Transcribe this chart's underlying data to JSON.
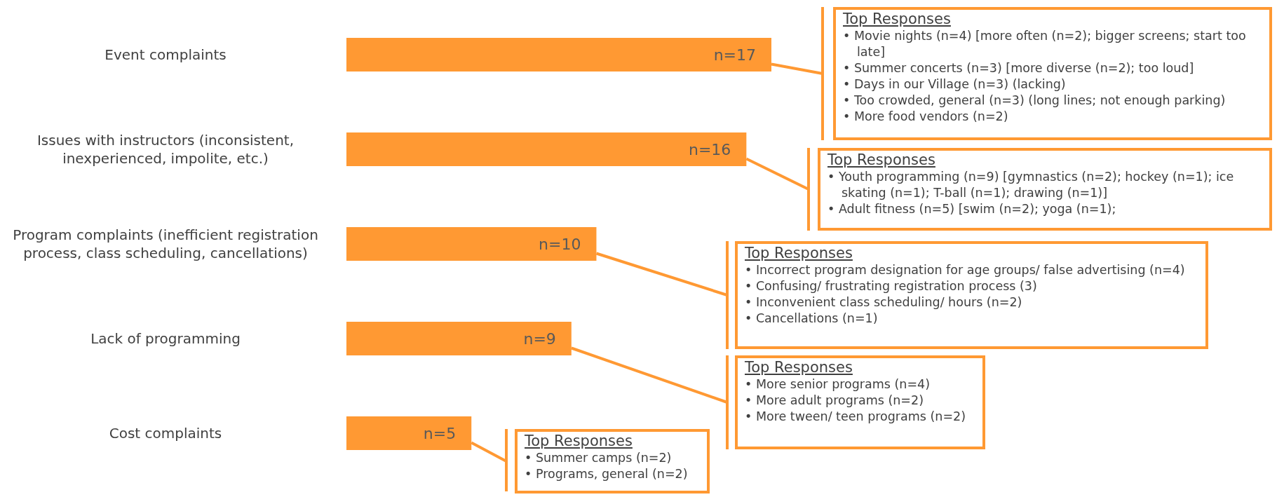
{
  "chart_data": {
    "type": "bar",
    "orientation": "horizontal",
    "categories": [
      "Event complaints",
      "Issues with instructors (inconsistent, inexperienced, impolite, etc.)",
      "Program complaints (inefficient registration process, class scheduling, cancellations)",
      "Lack of programming",
      "Cost complaints"
    ],
    "values": [
      17,
      16,
      10,
      9,
      5
    ],
    "color": "#ff9933",
    "value_labels": [
      "n=17",
      "n=16",
      "n=10",
      "n=9",
      "n=5"
    ],
    "annotations": [
      "Top Responses\n• Movie nights (n=4) [more often (n=2); bigger screens; start too late]\n• Summer concerts (n=3) [more diverse (n=2); too loud]\n• Days in our Village (n=3) (lacking)\n• Too crowded, general (n=3) (long lines; not enough parking)\n• More food vendors (n=2)",
      "Top Responses\n• Youth programming (n=9) [gymnastics (n=2); hockey (n=1); ice skating (n=1); T-ball (n=1); drawing (n=1)]\n• Adult fitness (n=5) [swim (n=2); yoga (n=1);",
      "Top Responses\n• Incorrect program designation for age groups/ false advertising (n=4)\n• Confusing/ frustrating registration process (3)\n• Inconvenient class scheduling/ hours (n=2)\n• Cancellations (n=1)",
      "Top Responses\n• More senior programs (n=4)\n• More adult programs (n=2)\n• More tween/ teen programs (n=2)",
      "Top Responses\n• Summer camps (n=2)\n• Programs, general (n=2)"
    ]
  }
}
